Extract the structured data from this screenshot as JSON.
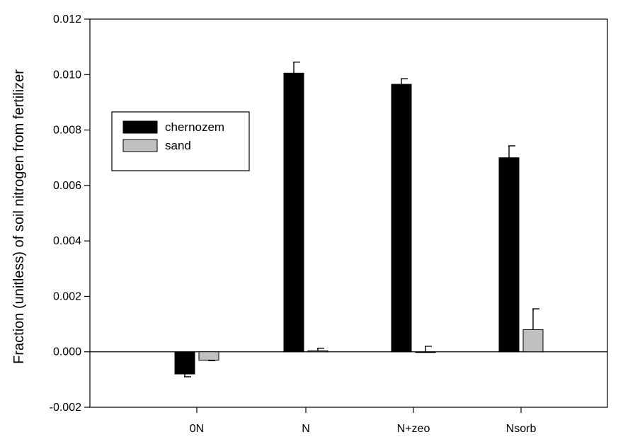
{
  "chart_data": {
    "type": "bar",
    "categories": [
      "0N",
      "N",
      "N+zeo",
      "Nsorb"
    ],
    "series": [
      {
        "name": "chernozem",
        "color": "#000000",
        "values": [
          -0.0008,
          0.01005,
          0.00965,
          0.007
        ],
        "errors": [
          0.0001,
          0.0004,
          0.0002,
          0.00043
        ]
      },
      {
        "name": "sand",
        "color": "#c0c0c0",
        "values": [
          -0.0003,
          4e-05,
          0.0,
          0.0008
        ],
        "errors": [
          2e-05,
          9e-05,
          0.0002,
          0.00075
        ]
      }
    ],
    "ylabel": "Fraction (unitless) of soil nitrogen from fertilizer",
    "xlabel": "",
    "ylim": [
      -0.002,
      0.012
    ],
    "yticks": [
      "-0.002",
      "0.000",
      "0.002",
      "0.004",
      "0.006",
      "0.008",
      "0.010",
      "0.012"
    ],
    "legend_position": "upper-left",
    "grid": false
  }
}
